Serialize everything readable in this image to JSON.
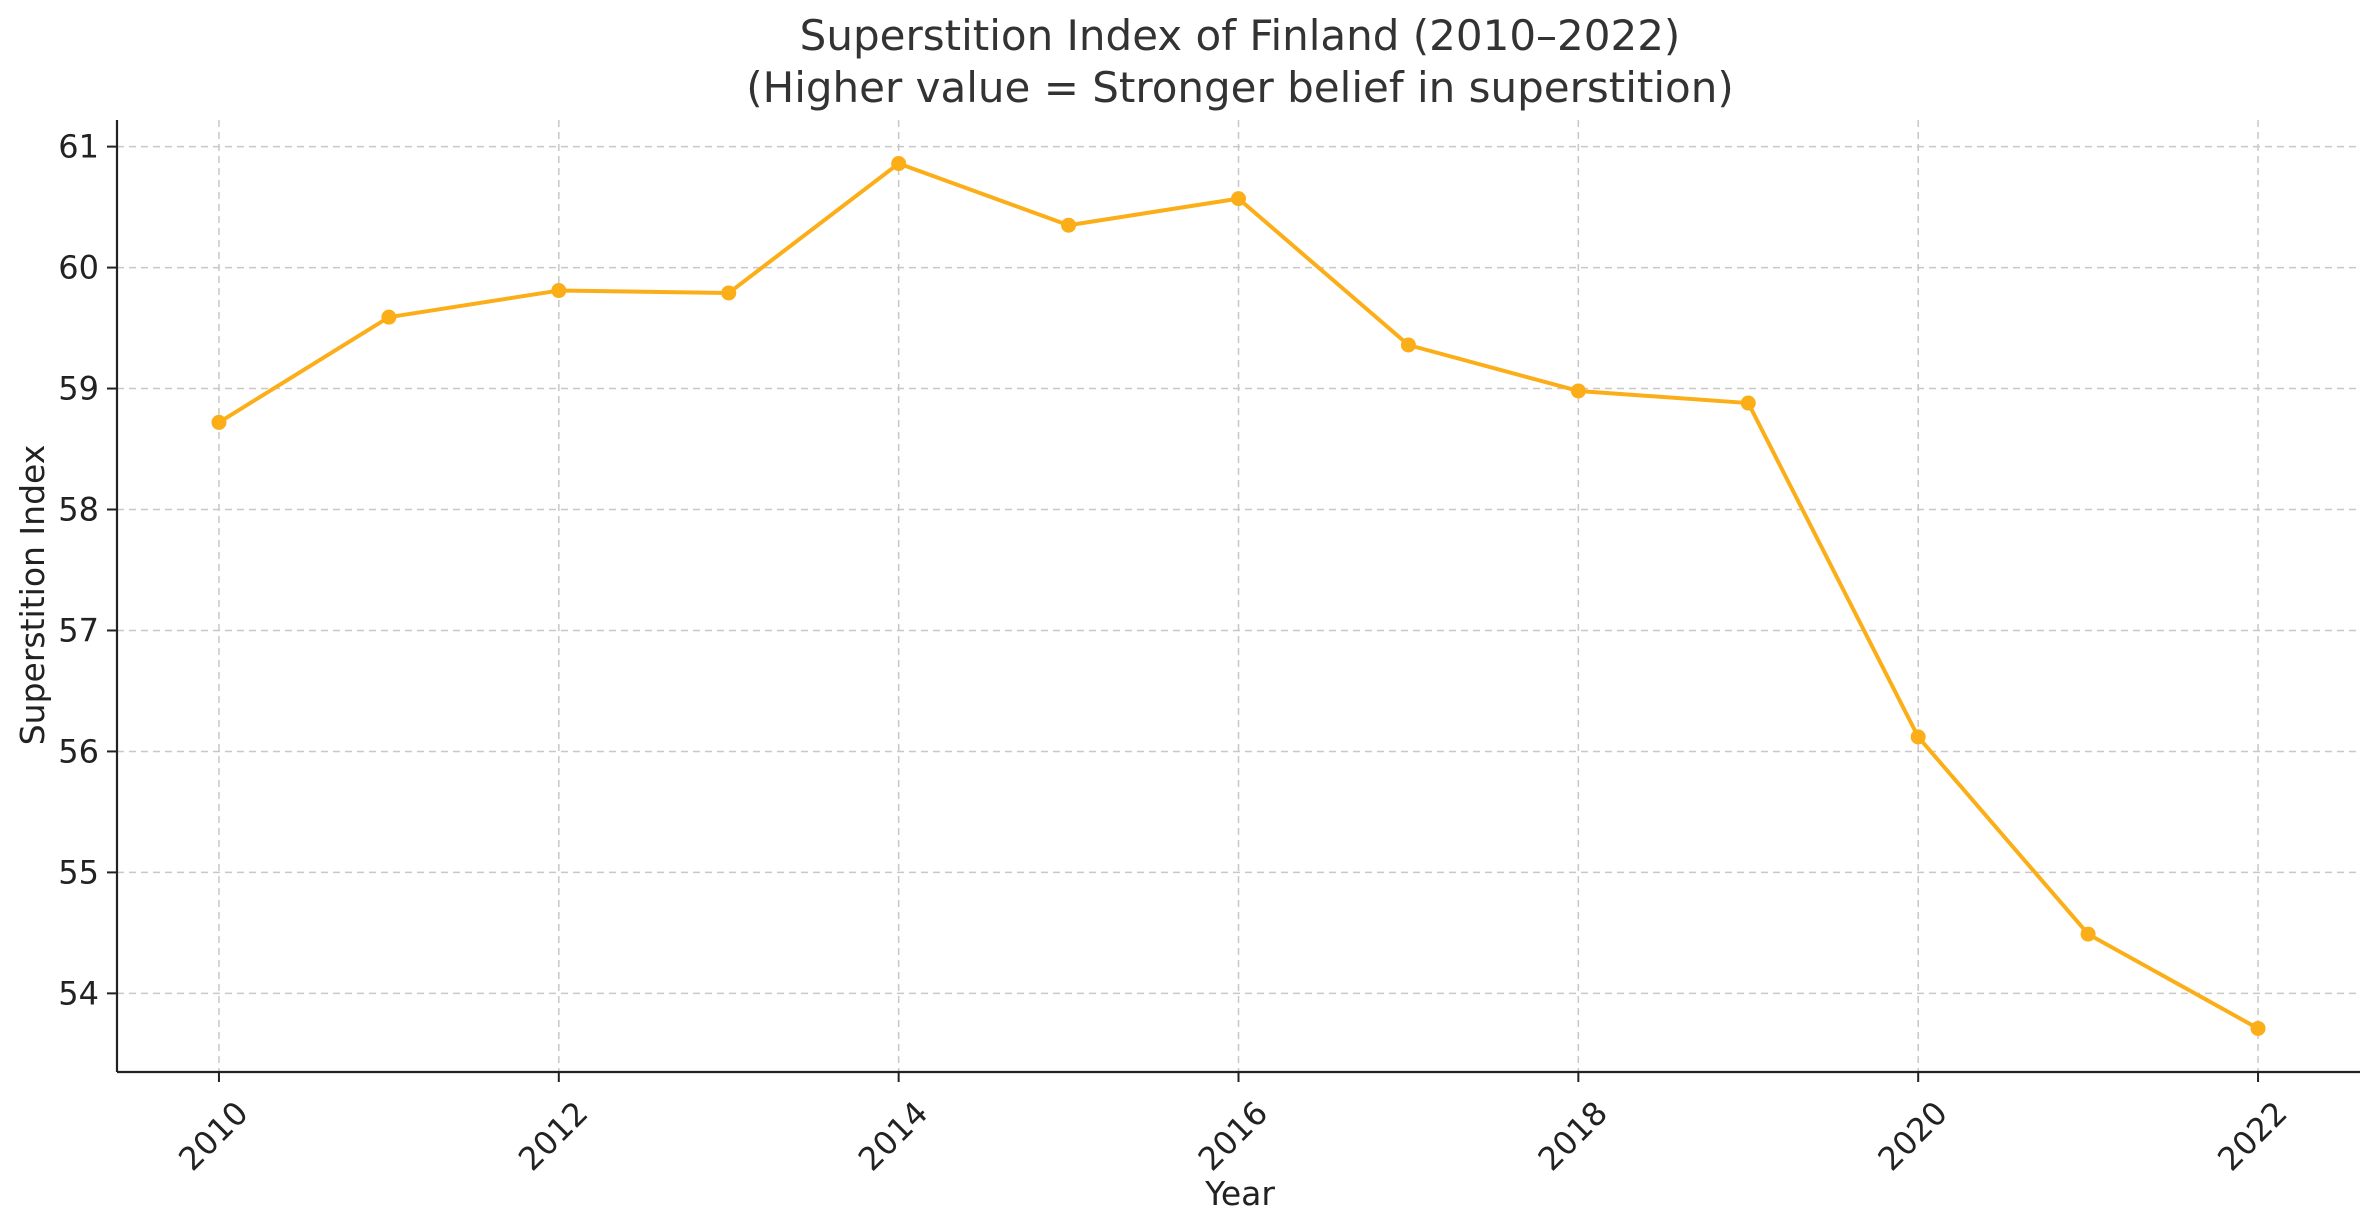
{
  "chart_data": {
    "type": "line",
    "title": "Superstition Index of Finland (2010–2022)",
    "subtitle": "(Higher value = Stronger belief in superstition)",
    "xlabel": "Year",
    "ylabel": "Superstition Index",
    "x": [
      2010,
      2011,
      2012,
      2013,
      2014,
      2015,
      2016,
      2017,
      2018,
      2019,
      2020,
      2021,
      2022
    ],
    "series": [
      {
        "values": [
          58.72,
          59.59,
          59.81,
          59.79,
          60.86,
          60.35,
          60.57,
          59.36,
          58.98,
          58.88,
          56.12,
          54.49,
          53.71
        ],
        "color": "#FBAE17",
        "marker": "circle"
      }
    ],
    "xticks": [
      2010,
      2012,
      2014,
      2016,
      2018,
      2020,
      2022
    ],
    "yticks": [
      54,
      55,
      56,
      57,
      58,
      59,
      60,
      61
    ],
    "xlim": [
      2009.4,
      2022.6
    ],
    "ylim": [
      53.35,
      61.22
    ],
    "grid": true,
    "legend": "none",
    "x_tick_rotation": 45
  }
}
